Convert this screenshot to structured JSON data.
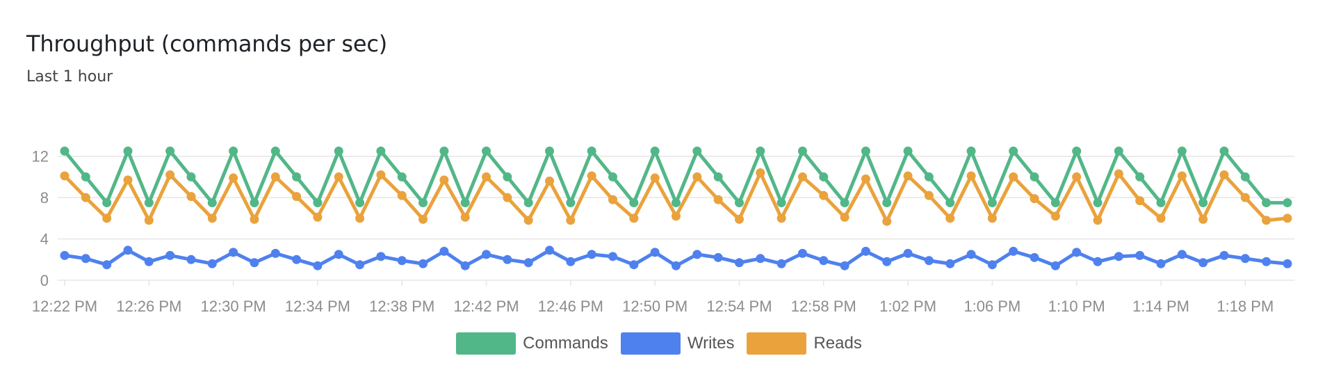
{
  "header": {
    "title": "Throughput (commands per sec)",
    "subtitle": "Last 1 hour"
  },
  "colors": {
    "commands": "#52b788",
    "writes": "#4f81ee",
    "reads": "#eaa23c",
    "grid": "#e6e6e6",
    "tick_text": "#8c8c8c"
  },
  "chart_data": {
    "type": "line",
    "y_ticks": [
      "0",
      "4",
      "8",
      "12"
    ],
    "ylim": [
      0,
      14
    ],
    "x_tick_labels": [
      "12:22 PM",
      "12:26 PM",
      "12:30 PM",
      "12:34 PM",
      "12:38 PM",
      "12:42 PM",
      "12:46 PM",
      "12:50 PM",
      "12:54 PM",
      "12:58 PM",
      "1:02 PM",
      "1:06 PM",
      "1:10 PM",
      "1:14 PM",
      "1:18 PM"
    ],
    "x_start": "12:22 PM",
    "x_interval_minutes": 1,
    "grid": true,
    "legend_position": "bottom",
    "series": [
      {
        "name": "Commands",
        "color": "#52b788",
        "values": [
          12.5,
          10.0,
          7.5,
          12.5,
          7.5,
          12.5,
          10.0,
          7.5,
          12.5,
          7.5,
          12.5,
          10.0,
          7.5,
          12.5,
          7.5,
          12.5,
          10.0,
          7.5,
          12.5,
          7.5,
          12.5,
          10.0,
          7.5,
          12.5,
          7.5,
          12.5,
          10.0,
          7.5,
          12.5,
          7.5,
          12.5,
          10.0,
          7.5,
          12.5,
          7.5,
          12.5,
          10.0,
          7.5,
          12.5,
          7.5,
          12.5,
          10.0,
          7.5,
          12.5,
          7.5,
          12.5,
          10.0,
          7.5,
          12.5,
          7.5,
          12.5,
          10.0,
          7.5,
          12.5,
          7.5,
          12.5,
          10.0,
          7.5,
          7.5
        ]
      },
      {
        "name": "Writes",
        "color": "#4f81ee",
        "values": [
          2.4,
          2.1,
          1.5,
          2.9,
          1.8,
          2.4,
          2.0,
          1.6,
          2.7,
          1.7,
          2.6,
          2.0,
          1.4,
          2.5,
          1.5,
          2.3,
          1.9,
          1.6,
          2.8,
          1.4,
          2.5,
          2.0,
          1.7,
          2.9,
          1.8,
          2.5,
          2.3,
          1.5,
          2.7,
          1.4,
          2.5,
          2.2,
          1.7,
          2.1,
          1.6,
          2.6,
          1.9,
          1.4,
          2.8,
          1.8,
          2.6,
          1.9,
          1.6,
          2.5,
          1.5,
          2.8,
          2.2,
          1.4,
          2.7,
          1.8,
          2.3,
          2.4,
          1.6,
          2.5,
          1.7,
          2.4,
          2.1,
          1.8,
          1.6
        ]
      },
      {
        "name": "Reads",
        "color": "#eaa23c",
        "values": [
          10.1,
          8.0,
          6.0,
          9.7,
          5.8,
          10.2,
          8.1,
          6.0,
          9.9,
          5.9,
          10.0,
          8.1,
          6.1,
          10.0,
          6.0,
          10.2,
          8.2,
          5.9,
          9.7,
          6.1,
          10.0,
          8.0,
          5.8,
          9.6,
          5.8,
          10.1,
          7.8,
          6.0,
          9.9,
          6.2,
          10.0,
          7.8,
          5.9,
          10.4,
          6.0,
          10.0,
          8.2,
          6.1,
          9.8,
          5.7,
          10.1,
          8.2,
          6.0,
          10.1,
          6.0,
          10.0,
          7.9,
          6.2,
          10.0,
          5.8,
          10.3,
          7.7,
          6.0,
          10.1,
          5.9,
          10.2,
          8.0,
          5.8,
          6.0
        ]
      }
    ]
  }
}
